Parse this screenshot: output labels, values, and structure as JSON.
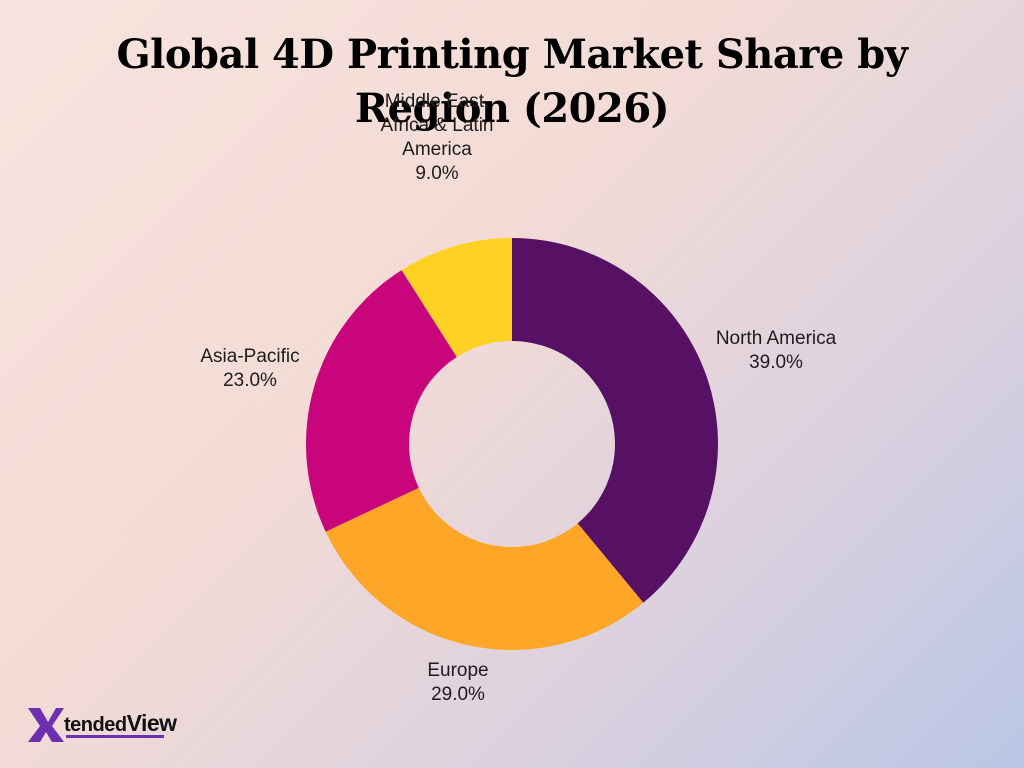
{
  "chart_data": {
    "type": "donut",
    "title": "Global 4D Printing Market Share by Region (2026)",
    "unit": "%",
    "slices": [
      {
        "label": "North America",
        "value": 39.0,
        "display": "39.0%",
        "color": "#561165"
      },
      {
        "label": "Europe",
        "value": 29.0,
        "display": "29.0%",
        "color": "#fea628"
      },
      {
        "label": "Asia-Pacific",
        "value": 23.0,
        "display": "23.0%",
        "color": "#c8057b"
      },
      {
        "label": "Middle East, Africa & Latin America",
        "value": 9.0,
        "display": "9.0%",
        "color": "#fed125"
      }
    ]
  },
  "logo": {
    "text_prefix": "tended",
    "text_suffix": "View",
    "mark_color": "#6b2fb0"
  }
}
